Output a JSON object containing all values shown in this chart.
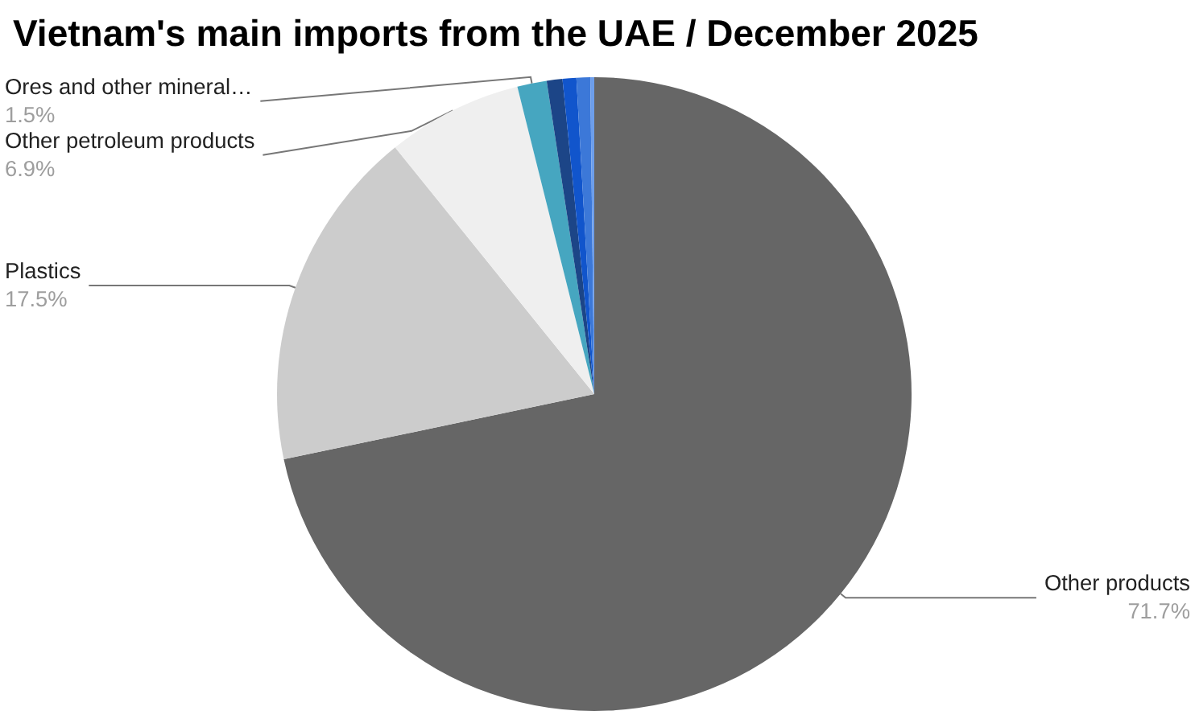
{
  "chart_data": {
    "type": "pie",
    "title": "Vietnam's main imports from the UAE / December 2025",
    "categories": [
      "Other products",
      "Plastics",
      "Other petroleum products",
      "Ores and other mineral…",
      null,
      null,
      null,
      null
    ],
    "values": [
      71.7,
      17.5,
      6.9,
      1.5,
      0.8,
      0.7,
      0.7,
      0.2
    ],
    "value_labels": [
      "71.7%",
      "17.5%",
      "6.9%",
      "1.5%",
      null,
      null,
      null,
      null
    ],
    "colors": [
      "#666666",
      "#cccccc",
      "#efefef",
      "#46a6c0",
      "#1c4587",
      "#1155cc",
      "#3c78d8",
      "#6d9eeb"
    ]
  }
}
